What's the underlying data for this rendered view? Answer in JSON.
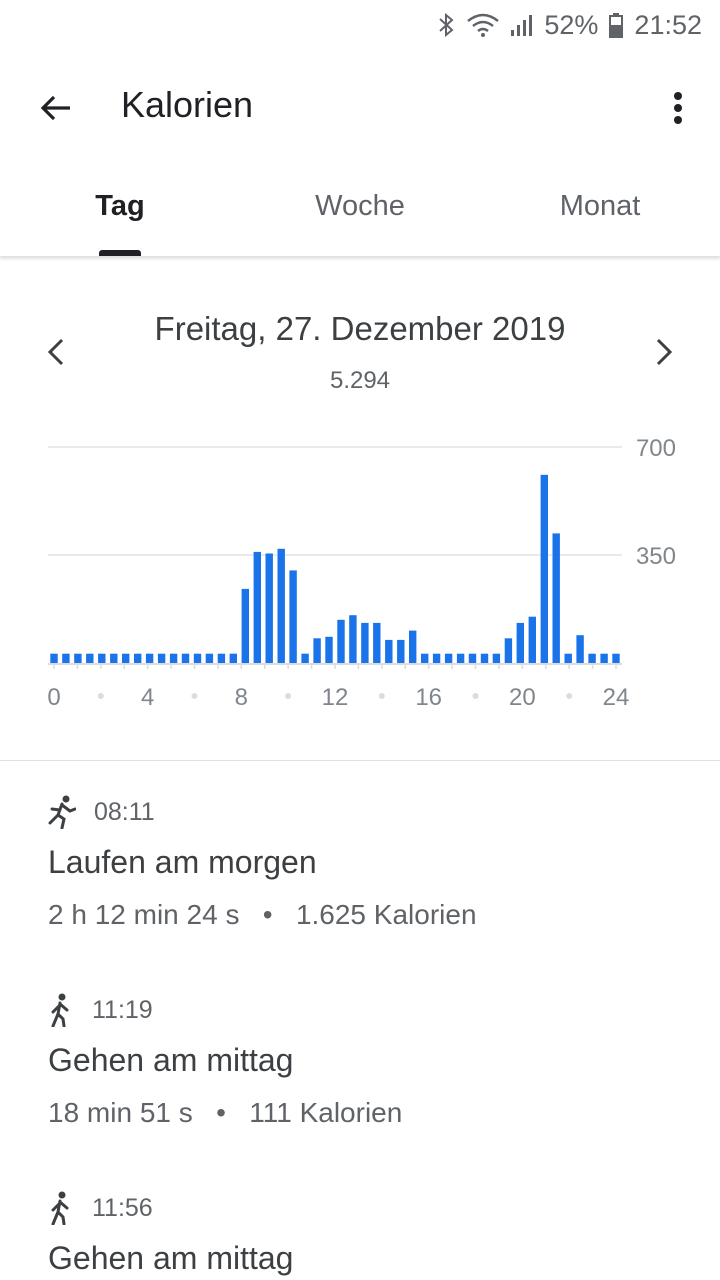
{
  "status_bar": {
    "battery": "52%",
    "time": "21:52"
  },
  "app_bar": {
    "title": "Kalorien"
  },
  "tabs": [
    {
      "label": "Tag",
      "active": true
    },
    {
      "label": "Woche",
      "active": false
    },
    {
      "label": "Monat",
      "active": false
    }
  ],
  "date_nav": {
    "date": "Freitag, 27. Dezember 2019",
    "total": "5.294"
  },
  "chart_data": {
    "type": "bar",
    "color": "#1a73e8",
    "x_ticks": [
      "0",
      "4",
      "8",
      "12",
      "16",
      "20",
      "24"
    ],
    "y_ticks": [
      "700",
      "350"
    ],
    "ylim": [
      0,
      700
    ],
    "grid": true,
    "values": [
      30,
      30,
      30,
      30,
      30,
      30,
      30,
      30,
      30,
      30,
      30,
      30,
      30,
      30,
      30,
      30,
      240,
      360,
      355,
      370,
      300,
      30,
      80,
      85,
      140,
      155,
      130,
      130,
      75,
      75,
      105,
      30,
      30,
      30,
      30,
      30,
      30,
      30,
      80,
      130,
      150,
      610,
      420,
      30,
      90,
      30,
      30,
      30
    ]
  },
  "activities": [
    {
      "icon": "running-icon",
      "time": "08:11",
      "title": "Laufen am morgen",
      "duration": "2 h 12 min 24 s",
      "calories": "1.625 Kalorien"
    },
    {
      "icon": "walking-icon",
      "time": "11:19",
      "title": "Gehen am mittag",
      "duration": "18 min 51 s",
      "calories": "111 Kalorien"
    },
    {
      "icon": "walking-icon",
      "time": "11:56",
      "title": "Gehen am mittag"
    }
  ]
}
